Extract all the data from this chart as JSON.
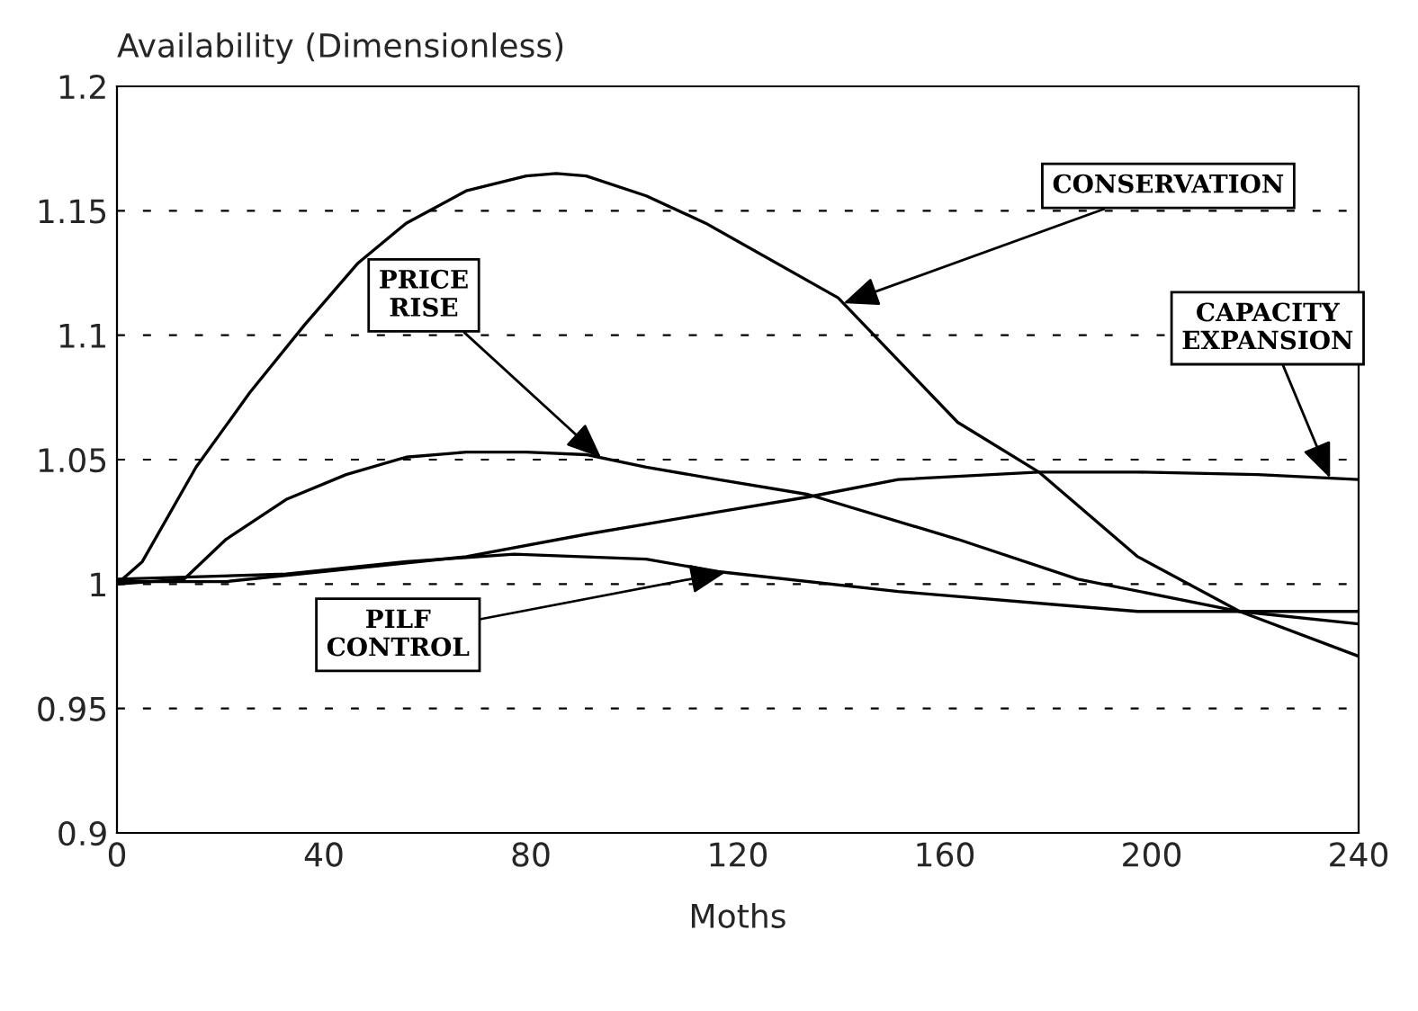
{
  "chart_data": {
    "type": "line",
    "xlabel": "Moths",
    "ylabel": "Availability (Dimensionless)",
    "xlim": [
      0,
      240
    ],
    "ylim": [
      0.9,
      1.2
    ],
    "xticks": [
      0,
      40,
      80,
      120,
      160,
      200,
      240
    ],
    "yticks": [
      0.9,
      0.95,
      1,
      1.05,
      1.1,
      1.15,
      1.2
    ],
    "grid": "y",
    "legend": false,
    "line_style": "solid",
    "marker": "none",
    "series": [
      {
        "name": "CONSERVATION",
        "color": "#000000",
        "x": [
          0,
          4.9,
          15.3,
          25.7,
          36.2,
          46.6,
          55.9,
          67.5,
          79.1,
          84.9,
          90.7,
          102.3,
          113.8,
          139.4,
          162.5,
          178.2,
          197.3,
          217,
          240
        ],
        "values": [
          1.0,
          1.009,
          1.047,
          1.077,
          1.104,
          1.129,
          1.145,
          1.158,
          1.164,
          1.165,
          1.164,
          1.156,
          1.145,
          1.115,
          1.065,
          1.045,
          1.011,
          0.989,
          0.971
        ]
      },
      {
        "name": "PRICE\nRISE",
        "color": "#000000",
        "x": [
          0,
          13,
          21.1,
          32.7,
          44.3,
          55.9,
          67.5,
          79.1,
          90.7,
          102.3,
          116.2,
          133.6,
          162.5,
          185.7,
          217,
          240
        ],
        "values": [
          1.0,
          1.002,
          1.018,
          1.034,
          1.044,
          1.051,
          1.053,
          1.053,
          1.052,
          1.047,
          1.042,
          1.036,
          1.018,
          1.002,
          0.989,
          0.984
        ]
      },
      {
        "name": "CAPACITY\nEXPANSION",
        "color": "#000000",
        "x": [
          0,
          21.1,
          44.3,
          67.5,
          90.7,
          116.2,
          133.6,
          151,
          178.2,
          197.3,
          220.5,
          240
        ],
        "values": [
          1.001,
          1.001,
          1.006,
          1.011,
          1.02,
          1.029,
          1.035,
          1.042,
          1.045,
          1.045,
          1.044,
          1.042
        ]
      },
      {
        "name": "PILF\nCONTROL",
        "color": "#000000",
        "x": [
          0,
          32.7,
          55.9,
          76.8,
          102.3,
          116.2,
          151,
          185.7,
          197.3,
          240
        ],
        "values": [
          1.002,
          1.004,
          1.009,
          1.012,
          1.01,
          1.005,
          0.997,
          0.991,
          0.989,
          0.989
        ]
      }
    ]
  }
}
